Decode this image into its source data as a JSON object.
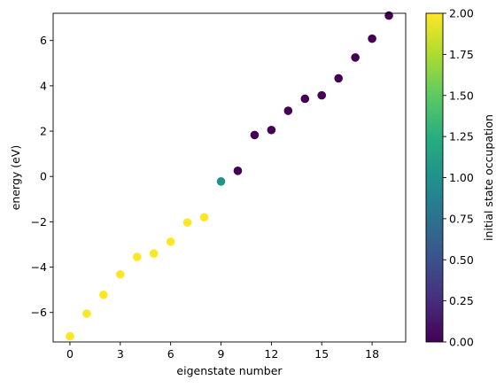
{
  "chart_data": {
    "type": "scatter",
    "title": "",
    "xlabel": "eigenstate number",
    "ylabel": "energy (eV)",
    "xlim": [
      -1,
      20
    ],
    "ylim": [
      -7.3,
      7.2
    ],
    "xticks": [
      0,
      3,
      6,
      9,
      12,
      15,
      18
    ],
    "xtick_labels": [
      "0",
      "3",
      "6",
      "9",
      "12",
      "15",
      "18"
    ],
    "yticks": [
      -6,
      -4,
      -2,
      0,
      2,
      4,
      6
    ],
    "ytick_labels": [
      "−6",
      "−4",
      "−2",
      "0",
      "2",
      "4",
      "6"
    ],
    "grid": false,
    "x": [
      0,
      1,
      2,
      3,
      4,
      5,
      6,
      7,
      8,
      9,
      10,
      11,
      12,
      13,
      14,
      15,
      16,
      17,
      18,
      19
    ],
    "y": [
      -7.05,
      -6.05,
      -5.22,
      -4.32,
      -3.55,
      -3.4,
      -2.88,
      -2.03,
      -1.8,
      -0.22,
      0.25,
      1.83,
      2.05,
      2.9,
      3.43,
      3.58,
      4.33,
      5.25,
      6.08,
      7.1
    ],
    "c": [
      2,
      2,
      2,
      2,
      2,
      2,
      2,
      2,
      2,
      1,
      0,
      0,
      0,
      0,
      0,
      0,
      0,
      0,
      0,
      0
    ],
    "colorbar": {
      "label": "initial state occupation",
      "colormap": "viridis",
      "range": [
        0,
        2
      ],
      "ticks": [
        0,
        0.25,
        0.5,
        0.75,
        1.0,
        1.25,
        1.5,
        1.75,
        2.0
      ],
      "tick_labels": [
        "0.00",
        "0.25",
        "0.50",
        "0.75",
        "1.00",
        "1.25",
        "1.50",
        "1.75",
        "2.00"
      ]
    },
    "colors": {
      "low": "#440154",
      "mid": "#21918c",
      "high": "#fde725"
    }
  }
}
